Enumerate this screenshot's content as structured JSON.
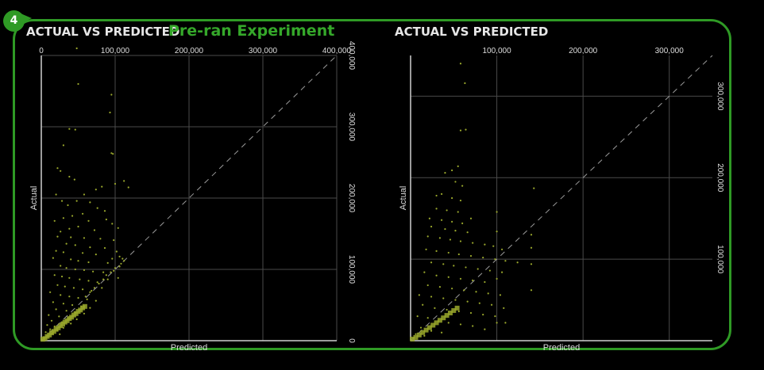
{
  "badge": {
    "number": "4"
  },
  "banner": {
    "text": "Pre-ran Experiment"
  },
  "colors": {
    "frame": "#2f9a25",
    "points": "#9aa82c",
    "grid": "#4a4a4a",
    "text": "#dddddd"
  },
  "chart_data": [
    {
      "type": "scatter",
      "title": "ACTUAL VS PREDICTED",
      "xlabel": "Predicted",
      "ylabel": "Actual",
      "xlim": [
        0,
        400000
      ],
      "ylim": [
        0,
        400000
      ],
      "x_ticks": [
        0,
        100000,
        200000,
        300000,
        400000
      ],
      "x_tick_labels": [
        "0",
        "100,000",
        "200,000",
        "300,000",
        "400,000"
      ],
      "y_ticks": [
        0,
        100000,
        200000,
        300000,
        400000
      ],
      "y_tick_labels": [
        "0",
        "100,000",
        "200,000",
        "300,000",
        "400,000"
      ],
      "grid": true,
      "reference_line": "y = x (dashed)",
      "points": [
        [
          48000,
          410000
        ],
        [
          50000,
          360000
        ],
        [
          95000,
          345000
        ],
        [
          93000,
          320000
        ],
        [
          38000,
          297000
        ],
        [
          46000,
          296000
        ],
        [
          30000,
          274000
        ],
        [
          95000,
          263000
        ],
        [
          97000,
          262000
        ],
        [
          22000,
          242000
        ],
        [
          26000,
          238000
        ],
        [
          38000,
          230000
        ],
        [
          45000,
          226000
        ],
        [
          100000,
          220000
        ],
        [
          118000,
          215000
        ],
        [
          112000,
          224000
        ],
        [
          82000,
          216000
        ],
        [
          74000,
          212000
        ],
        [
          58000,
          205000
        ],
        [
          20000,
          205000
        ],
        [
          28000,
          196000
        ],
        [
          36000,
          190000
        ],
        [
          48000,
          196000
        ],
        [
          66000,
          194000
        ],
        [
          76000,
          186000
        ],
        [
          86000,
          182000
        ],
        [
          56000,
          178000
        ],
        [
          42000,
          175000
        ],
        [
          30000,
          172000
        ],
        [
          18000,
          168000
        ],
        [
          64000,
          168000
        ],
        [
          88000,
          170000
        ],
        [
          96000,
          164000
        ],
        [
          50000,
          160000
        ],
        [
          38000,
          157000
        ],
        [
          26000,
          153000
        ],
        [
          72000,
          155000
        ],
        [
          104000,
          158000
        ],
        [
          22000,
          146000
        ],
        [
          40000,
          145000
        ],
        [
          58000,
          144000
        ],
        [
          80000,
          143000
        ],
        [
          98000,
          141000
        ],
        [
          34000,
          136000
        ],
        [
          46000,
          134000
        ],
        [
          66000,
          131000
        ],
        [
          86000,
          130000
        ],
        [
          20000,
          126000
        ],
        [
          30000,
          124000
        ],
        [
          56000,
          123000
        ],
        [
          74000,
          121000
        ],
        [
          102000,
          125000
        ],
        [
          106000,
          118000
        ],
        [
          16000,
          116000
        ],
        [
          40000,
          114000
        ],
        [
          50000,
          112000
        ],
        [
          64000,
          110000
        ],
        [
          90000,
          109000
        ],
        [
          96000,
          115000
        ],
        [
          26000,
          105000
        ],
        [
          34000,
          102000
        ],
        [
          46000,
          100000
        ],
        [
          58000,
          99000
        ],
        [
          70000,
          97000
        ],
        [
          84000,
          96000
        ],
        [
          98000,
          98000
        ],
        [
          108000,
          108000
        ],
        [
          112000,
          112000
        ],
        [
          18000,
          92000
        ],
        [
          28000,
          90000
        ],
        [
          38000,
          88000
        ],
        [
          52000,
          86000
        ],
        [
          64000,
          84000
        ],
        [
          76000,
          82000
        ],
        [
          90000,
          86000
        ],
        [
          104000,
          88000
        ],
        [
          22000,
          78000
        ],
        [
          32000,
          76000
        ],
        [
          44000,
          74000
        ],
        [
          56000,
          72000
        ],
        [
          68000,
          70000
        ],
        [
          82000,
          74000
        ],
        [
          12000,
          68000
        ],
        [
          26000,
          64000
        ],
        [
          38000,
          62000
        ],
        [
          50000,
          60000
        ],
        [
          62000,
          58000
        ],
        [
          74000,
          56000
        ],
        [
          16000,
          54000
        ],
        [
          30000,
          52000
        ],
        [
          42000,
          50000
        ],
        [
          54000,
          48000
        ],
        [
          66000,
          46000
        ],
        [
          20000,
          44000
        ],
        [
          34000,
          42000
        ],
        [
          46000,
          40000
        ],
        [
          58000,
          38000
        ],
        [
          10000,
          36000
        ],
        [
          24000,
          34000
        ],
        [
          36000,
          32000
        ],
        [
          48000,
          30000
        ],
        [
          14000,
          28000
        ],
        [
          28000,
          26000
        ],
        [
          40000,
          24000
        ],
        [
          8000,
          22000
        ],
        [
          18000,
          20000
        ],
        [
          30000,
          18000
        ],
        [
          12000,
          16000
        ],
        [
          22000,
          14000
        ],
        [
          6000,
          12000
        ],
        [
          15000,
          10000
        ],
        [
          25000,
          9000
        ],
        [
          8000,
          7000
        ],
        [
          3000,
          4000
        ],
        [
          60000,
          62000
        ],
        [
          66000,
          68000
        ],
        [
          72000,
          74000
        ],
        [
          78000,
          80000
        ],
        [
          84000,
          86000
        ],
        [
          88000,
          92000
        ],
        [
          94000,
          96000
        ],
        [
          100000,
          102000
        ],
        [
          106000,
          104000
        ],
        [
          110000,
          115000
        ]
      ],
      "dense_points": [
        [
          2000,
          2000
        ],
        [
          5000,
          3000
        ],
        [
          8000,
          6000
        ],
        [
          11000,
          8000
        ],
        [
          14000,
          11000
        ],
        [
          17000,
          13000
        ],
        [
          20000,
          16000
        ],
        [
          23000,
          18000
        ],
        [
          26000,
          21000
        ],
        [
          29000,
          23000
        ],
        [
          32000,
          26000
        ],
        [
          35000,
          28000
        ],
        [
          38000,
          31000
        ],
        [
          41000,
          33000
        ],
        [
          44000,
          36000
        ],
        [
          47000,
          38000
        ],
        [
          50000,
          41000
        ],
        [
          53000,
          43000
        ],
        [
          56000,
          46000
        ],
        [
          59000,
          48000
        ]
      ]
    },
    {
      "type": "scatter",
      "title": "ACTUAL VS PREDICTED",
      "xlabel": "Predicted",
      "ylabel": "Actual",
      "xlim": [
        0,
        350000
      ],
      "ylim": [
        0,
        350000
      ],
      "x_ticks": [
        100000,
        200000,
        300000
      ],
      "x_tick_labels": [
        "100,000",
        "200,000",
        "300,000"
      ],
      "y_ticks": [
        100000,
        200000,
        300000
      ],
      "y_tick_labels": [
        "100,000",
        "200,000",
        "300,000"
      ],
      "grid": true,
      "reference_line": "y = x (dashed)",
      "points": [
        [
          58000,
          340000
        ],
        [
          63000,
          316000
        ],
        [
          64000,
          259000
        ],
        [
          58000,
          258000
        ],
        [
          55000,
          214000
        ],
        [
          48000,
          209000
        ],
        [
          40000,
          206000
        ],
        [
          52000,
          195000
        ],
        [
          60000,
          190000
        ],
        [
          143000,
          187000
        ],
        [
          36000,
          180000
        ],
        [
          30000,
          178000
        ],
        [
          48000,
          175000
        ],
        [
          58000,
          172000
        ],
        [
          30000,
          162000
        ],
        [
          42000,
          160000
        ],
        [
          55000,
          158000
        ],
        [
          100000,
          158000
        ],
        [
          22000,
          150000
        ],
        [
          36000,
          148000
        ],
        [
          48000,
          146000
        ],
        [
          60000,
          144000
        ],
        [
          70000,
          150000
        ],
        [
          24000,
          140000
        ],
        [
          40000,
          137000
        ],
        [
          52000,
          135000
        ],
        [
          66000,
          133000
        ],
        [
          100000,
          134000
        ],
        [
          140000,
          130000
        ],
        [
          20000,
          128000
        ],
        [
          34000,
          126000
        ],
        [
          46000,
          124000
        ],
        [
          58000,
          122000
        ],
        [
          72000,
          120000
        ],
        [
          86000,
          118000
        ],
        [
          96000,
          116000
        ],
        [
          106000,
          112000
        ],
        [
          140000,
          114000
        ],
        [
          18000,
          112000
        ],
        [
          30000,
          110000
        ],
        [
          44000,
          108000
        ],
        [
          56000,
          106000
        ],
        [
          70000,
          104000
        ],
        [
          84000,
          102000
        ],
        [
          98000,
          100000
        ],
        [
          110000,
          98000
        ],
        [
          124000,
          96000
        ],
        [
          140000,
          94000
        ],
        [
          24000,
          96000
        ],
        [
          38000,
          94000
        ],
        [
          50000,
          92000
        ],
        [
          64000,
          90000
        ],
        [
          78000,
          88000
        ],
        [
          92000,
          86000
        ],
        [
          106000,
          84000
        ],
        [
          16000,
          84000
        ],
        [
          30000,
          80000
        ],
        [
          44000,
          78000
        ],
        [
          58000,
          76000
        ],
        [
          72000,
          74000
        ],
        [
          86000,
          72000
        ],
        [
          100000,
          76000
        ],
        [
          140000,
          62000
        ],
        [
          20000,
          68000
        ],
        [
          34000,
          66000
        ],
        [
          48000,
          64000
        ],
        [
          62000,
          62000
        ],
        [
          76000,
          60000
        ],
        [
          90000,
          58000
        ],
        [
          104000,
          56000
        ],
        [
          10000,
          56000
        ],
        [
          24000,
          54000
        ],
        [
          38000,
          52000
        ],
        [
          52000,
          50000
        ],
        [
          66000,
          48000
        ],
        [
          80000,
          46000
        ],
        [
          94000,
          44000
        ],
        [
          108000,
          40000
        ],
        [
          14000,
          44000
        ],
        [
          28000,
          40000
        ],
        [
          42000,
          38000
        ],
        [
          56000,
          36000
        ],
        [
          70000,
          34000
        ],
        [
          84000,
          32000
        ],
        [
          98000,
          30000
        ],
        [
          110000,
          22000
        ],
        [
          8000,
          30000
        ],
        [
          20000,
          28000
        ],
        [
          32000,
          24000
        ],
        [
          44000,
          22000
        ],
        [
          58000,
          20000
        ],
        [
          72000,
          18000
        ],
        [
          86000,
          14000
        ],
        [
          100000,
          22000
        ],
        [
          12000,
          16000
        ],
        [
          24000,
          12000
        ],
        [
          36000,
          10000
        ],
        [
          6000,
          8000
        ],
        [
          16000,
          6000
        ]
      ],
      "dense_points": [
        [
          2000,
          2000
        ],
        [
          6000,
          4000
        ],
        [
          10000,
          7000
        ],
        [
          14000,
          10000
        ],
        [
          18000,
          13000
        ],
        [
          22000,
          16000
        ],
        [
          26000,
          19000
        ],
        [
          30000,
          22000
        ],
        [
          34000,
          25000
        ],
        [
          38000,
          28000
        ],
        [
          42000,
          31000
        ],
        [
          46000,
          34000
        ],
        [
          50000,
          37000
        ],
        [
          54000,
          40000
        ]
      ]
    }
  ]
}
